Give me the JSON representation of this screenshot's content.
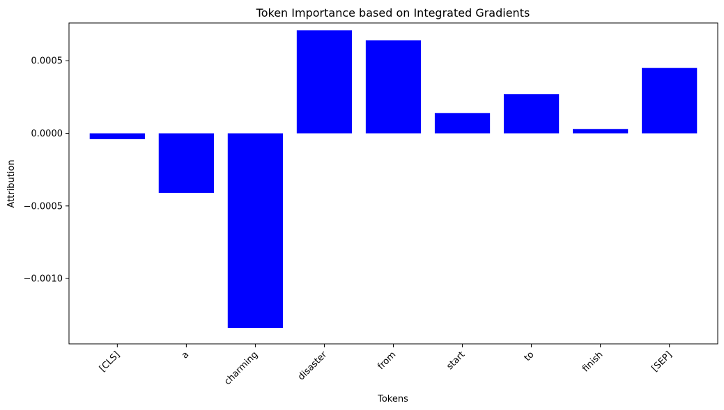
{
  "chart_data": {
    "type": "bar",
    "title": "Token Importance based on Integrated Gradients",
    "xlabel": "Tokens",
    "ylabel": "Attribution",
    "categories": [
      "[CLS]",
      "a",
      "charming",
      "disaster",
      "from",
      "start",
      "to",
      "finish",
      "[SEP]"
    ],
    "values": [
      -4e-05,
      -0.00041,
      -0.00134,
      0.00071,
      0.00064,
      0.00014,
      0.00027,
      3e-05,
      0.00045
    ],
    "ylim": [
      -0.00145,
      0.00076
    ],
    "yticks": [
      0.0005,
      0.0,
      -0.0005,
      -0.001
    ],
    "ytick_labels": [
      "0.0005",
      "0.0000",
      "−0.0005",
      "−0.0010"
    ],
    "bar_color": "#0000ff",
    "grid": false,
    "legend": false
  }
}
